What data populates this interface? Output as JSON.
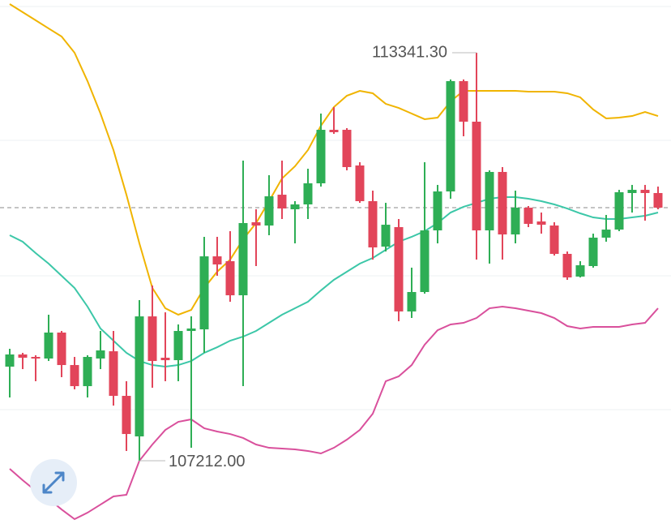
{
  "chart_data": {
    "type": "candlestick",
    "ylim": [
      106261,
      114133
    ],
    "up_color": "#2eae55",
    "down_color": "#e2455a",
    "open": [
      108625,
      108808,
      108771,
      108747,
      109137,
      108649,
      108332,
      108747,
      108856,
      108186,
      107577,
      109380,
      108759,
      108722,
      109161,
      109185,
      110282,
      110209,
      109697,
      110794,
      110745,
      111208,
      110989,
      111062,
      111379,
      112183,
      112183,
      111647,
      111111,
      110428,
      110721,
      109454,
      109746,
      110672,
      111257,
      112914,
      112305,
      110672,
      111550,
      110611,
      111013,
      110806,
      110745,
      110319,
      109978,
      110136,
      110563,
      110684,
      111233,
      111281,
      111233
    ],
    "high": [
      108893,
      108832,
      108796,
      109405,
      109161,
      108771,
      108796,
      109161,
      109161,
      108406,
      109624,
      109844,
      109441,
      109259,
      109380,
      110575,
      110575,
      110660,
      111720,
      110989,
      111501,
      111720,
      111111,
      111598,
      112427,
      112524,
      112208,
      111696,
      111269,
      111086,
      110843,
      110112,
      111696,
      111355,
      112939,
      112939,
      113341.3,
      111574,
      111623,
      111269,
      111038,
      110940,
      110794,
      110355,
      110209,
      110623,
      110904,
      111281,
      111355,
      111355,
      111330
    ],
    "low": [
      108162,
      108588,
      108406,
      108710,
      108467,
      108284,
      108162,
      108588,
      108040,
      107358,
      107212,
      108308,
      108406,
      108406,
      107406,
      108832,
      109990,
      109600,
      108332,
      110136,
      110599,
      110843,
      110477,
      110843,
      111330,
      112122,
      111574,
      111086,
      110233,
      110355,
      109307,
      109356,
      109722,
      110477,
      111147,
      112086,
      110233,
      110173,
      110233,
      110477,
      110721,
      110623,
      110294,
      109929,
      109965,
      110112,
      110502,
      110660,
      110940,
      110818,
      110989
    ],
    "close": [
      108808,
      108759,
      108747,
      109137,
      108649,
      108332,
      108771,
      108869,
      108186,
      107613,
      109380,
      108710,
      108722,
      109161,
      109198,
      110282,
      110160,
      109697,
      110782,
      110745,
      111184,
      111001,
      111062,
      111379,
      112183,
      112147,
      111623,
      111111,
      110416,
      110757,
      109454,
      109746,
      110672,
      111257,
      112914,
      112305,
      110672,
      111550,
      110611,
      111013,
      110770,
      110757,
      110319,
      109965,
      110148,
      110563,
      110684,
      111245,
      111281,
      111233,
      111013
    ],
    "overlays": [
      {
        "color": "#f0b400",
        "values": [
          114072,
          113950,
          113828,
          113706,
          113585,
          113341,
          112914,
          112427,
          111879,
          111208,
          110477,
          109807,
          109502,
          109405,
          109478,
          109807,
          110051,
          110233,
          110538,
          110782,
          111111,
          111452,
          111635,
          111879,
          112244,
          112524,
          112695,
          112768,
          112732,
          112573,
          112512,
          112427,
          112342,
          112366,
          112610,
          112768,
          112768,
          112768,
          112768,
          112768,
          112756,
          112756,
          112756,
          112732,
          112671,
          112488,
          112354,
          112366,
          112390,
          112451,
          112390
        ]
      },
      {
        "color": "#3cc7a8",
        "values": [
          110599,
          110502,
          110331,
          110173,
          109990,
          109807,
          109527,
          109198,
          109015,
          108832,
          108710,
          108649,
          108625,
          108649,
          108710,
          108832,
          108917,
          109015,
          109076,
          109161,
          109283,
          109405,
          109502,
          109600,
          109770,
          109929,
          110051,
          110173,
          110258,
          110380,
          110502,
          110575,
          110660,
          110782,
          110940,
          111026,
          111086,
          111147,
          111172,
          111172,
          111147,
          111111,
          111062,
          111001,
          110928,
          110867,
          110843,
          110843,
          110867,
          110892,
          110940
        ]
      },
      {
        "color": "#d9509c",
        "values": [
          107089,
          106919,
          106760,
          106639,
          106480,
          106334,
          106431,
          106553,
          106675,
          106700,
          107211,
          107455,
          107674,
          107796,
          107833,
          107699,
          107650,
          107613,
          107553,
          107455,
          107406,
          107394,
          107382,
          107358,
          107321,
          107406,
          107528,
          107674,
          107918,
          108406,
          108479,
          108649,
          108954,
          109173,
          109259,
          109283,
          109356,
          109502,
          109527,
          109502,
          109466,
          109429,
          109356,
          109234,
          109198,
          109222,
          109222,
          109222,
          109259,
          109283,
          109502
        ]
      }
    ],
    "annotations": [
      {
        "value": 113341.3,
        "label": "113341.30"
      },
      {
        "value": 107212,
        "label": "107212.00"
      }
    ]
  }
}
